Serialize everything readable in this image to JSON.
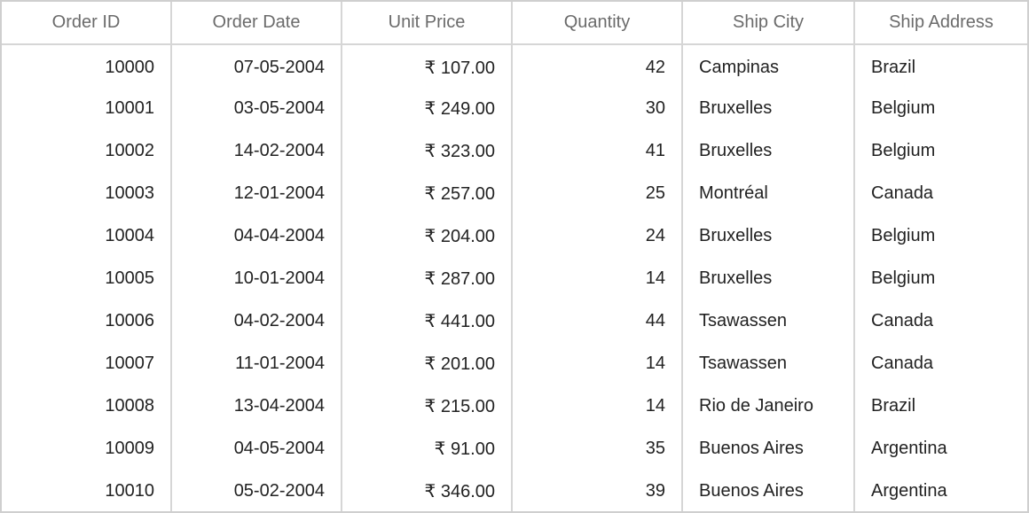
{
  "columns": [
    "Order ID",
    "Order Date",
    "Unit Price",
    "Quantity",
    "Ship City",
    "Ship Address"
  ],
  "rows": [
    [
      "10000",
      "07-05-2004",
      "₹ 107.00",
      "42",
      "Campinas",
      "Brazil"
    ],
    [
      "10001",
      "03-05-2004",
      "₹ 249.00",
      "30",
      "Bruxelles",
      "Belgium"
    ],
    [
      "10002",
      "14-02-2004",
      "₹ 323.00",
      "41",
      "Bruxelles",
      "Belgium"
    ],
    [
      "10003",
      "12-01-2004",
      "₹ 257.00",
      "25",
      "Montréal",
      "Canada"
    ],
    [
      "10004",
      "04-04-2004",
      "₹ 204.00",
      "24",
      "Bruxelles",
      "Belgium"
    ],
    [
      "10005",
      "10-01-2004",
      "₹ 287.00",
      "14",
      "Bruxelles",
      "Belgium"
    ],
    [
      "10006",
      "04-02-2004",
      "₹ 441.00",
      "44",
      "Tsawassen",
      "Canada"
    ],
    [
      "10007",
      "11-01-2004",
      "₹ 201.00",
      "14",
      "Tsawassen",
      "Canada"
    ],
    [
      "10008",
      "13-04-2004",
      "₹ 215.00",
      "14",
      "Rio de Janeiro",
      "Brazil"
    ],
    [
      "10009",
      "04-05-2004",
      "₹ 91.00",
      "35",
      "Buenos Aires",
      "Argentina"
    ],
    [
      "10010",
      "05-02-2004",
      "₹ 346.00",
      "39",
      "Buenos Aires",
      "Argentina"
    ]
  ]
}
